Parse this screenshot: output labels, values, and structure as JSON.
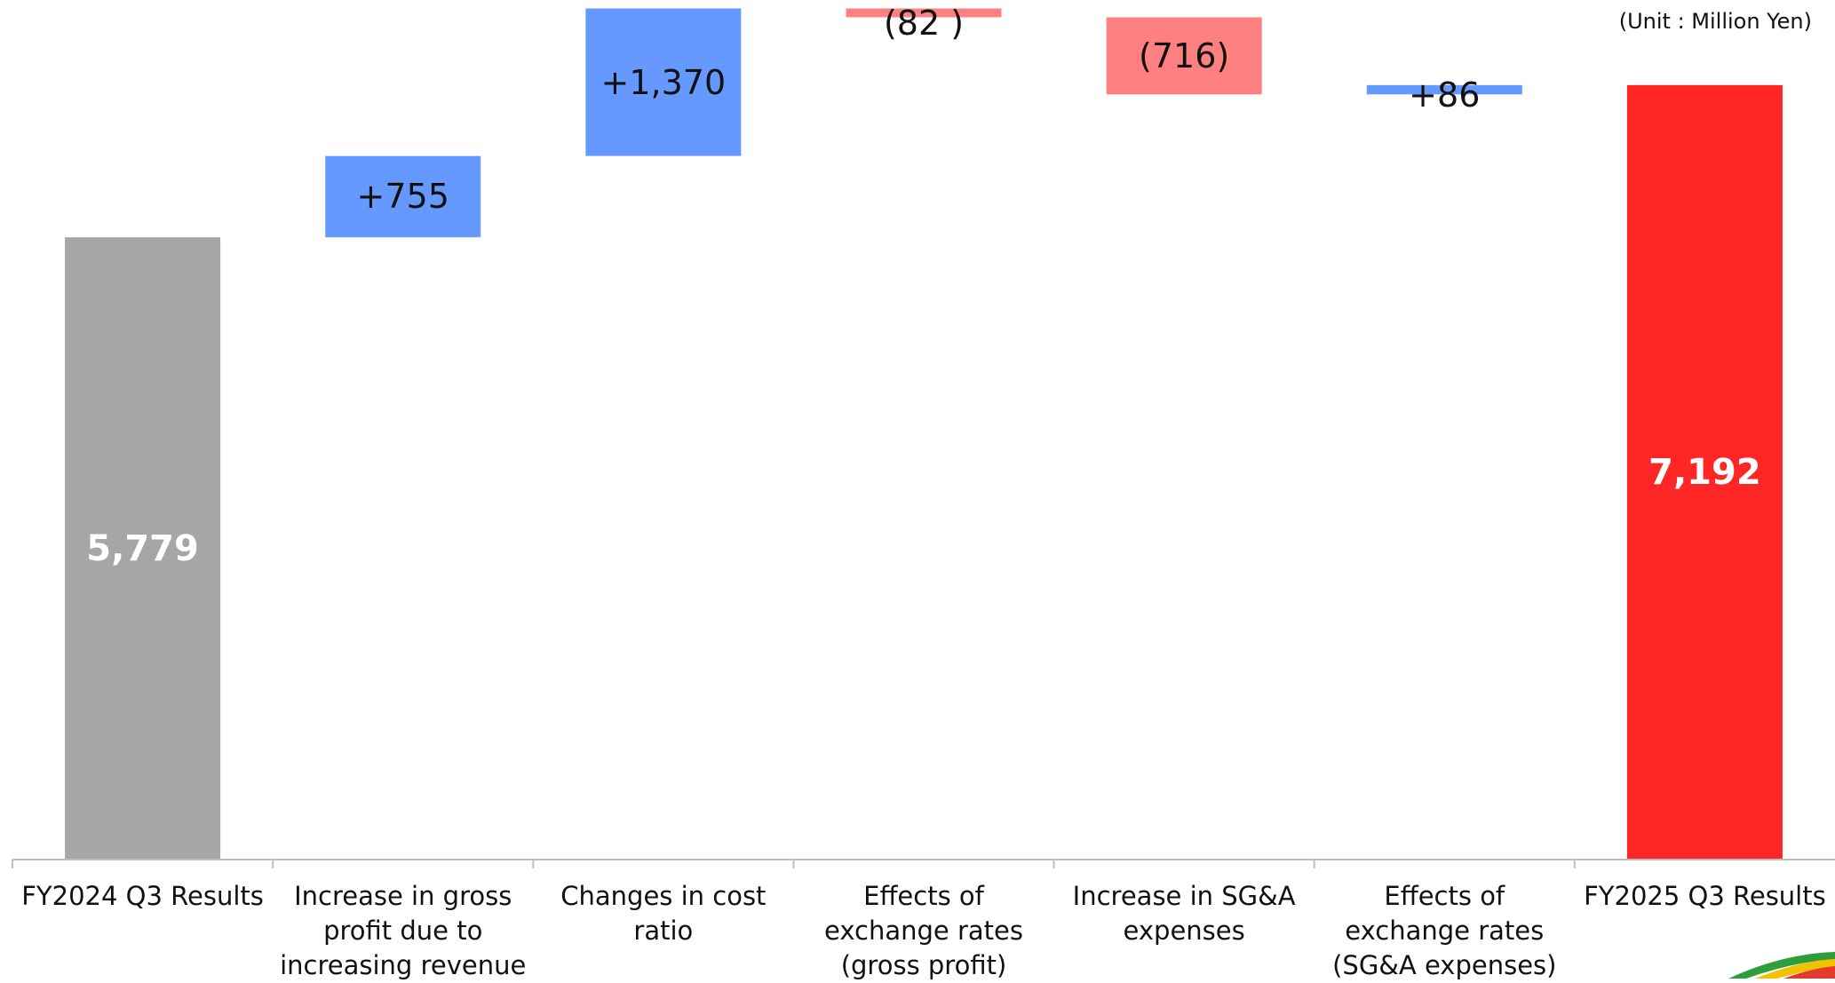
{
  "chart_data": {
    "type": "bar",
    "subtype": "waterfall",
    "unit_note": "(Unit : Million Yen)",
    "categories": [
      "FY2024 Q3 Results",
      "Increase in gross profit due to increasing revenue",
      "Changes in cost ratio",
      "Effects of exchange rates (gross profit)",
      "Increase in SG&A expenses",
      "Effects of exchange rates (SG&A expenses)",
      "FY2025 Q3 Results"
    ],
    "values": [
      5779,
      755,
      1370,
      -82,
      -716,
      86,
      7192
    ],
    "value_labels": [
      "5,779",
      "+755",
      "+1,370",
      "(82 )",
      "(716)",
      "+86",
      "7,192"
    ],
    "bar_kinds": [
      "total",
      "increase",
      "increase",
      "decrease",
      "decrease",
      "increase",
      "total"
    ],
    "ylim": [
      0,
      7900
    ],
    "grid": false,
    "legend": "none",
    "colors": {
      "start_total": "#a6a6a6",
      "end_total": "#ff2626",
      "increase": "#6699ff",
      "decrease": "#ff8080",
      "axis": "#bfbfbf"
    }
  }
}
